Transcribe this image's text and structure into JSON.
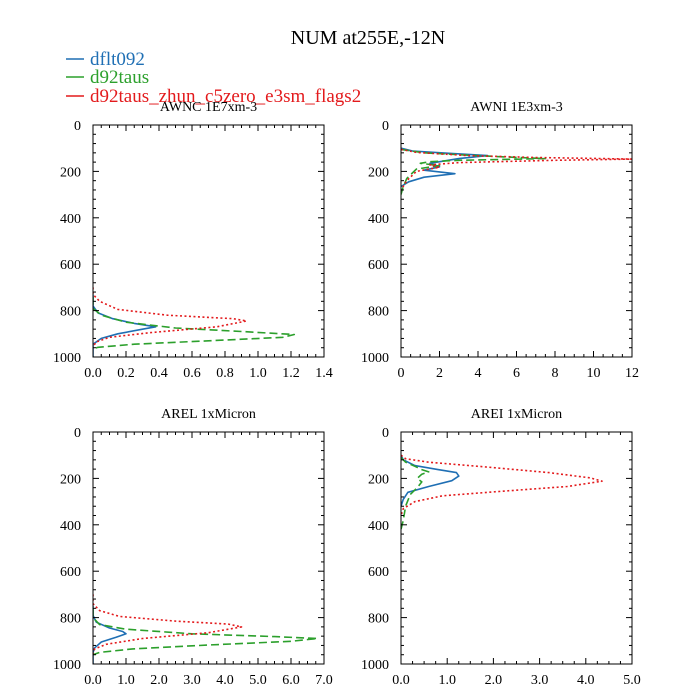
{
  "figure_title": "NUM at255E,-12N",
  "legend": [
    {
      "label": "dflt092",
      "color": "#1f6fb4",
      "dash": "solid"
    },
    {
      "label": "d92taus",
      "color": "#2ca02c",
      "dash": "long"
    },
    {
      "label": "d92taus_zhun_c5zero_e3sm_flags2",
      "color": "#e31a1c",
      "dash": "dot"
    }
  ],
  "chart_data": [
    {
      "type": "line",
      "title": "AWNC  1E7xm-3",
      "xlim": [
        0,
        1.4
      ],
      "ylim": [
        1000,
        0
      ],
      "xticks": [
        0,
        0.2,
        0.4,
        0.6,
        0.8,
        1,
        1.2,
        1.4
      ],
      "xtick_labels": [
        "0.0",
        "0.2",
        "0.4",
        "0.6",
        "0.8",
        "1.0",
        "1.2",
        "1.4"
      ],
      "yticks": [
        0,
        200,
        400,
        600,
        800,
        1000
      ],
      "ytick_labels": [
        "0",
        "200",
        "400",
        "600",
        "800",
        "1000"
      ],
      "series": [
        {
          "name": "dflt092",
          "points": [
            [
              0,
              730
            ],
            [
              0,
              780
            ],
            [
              0.03,
              810
            ],
            [
              0.12,
              835
            ],
            [
              0.25,
              855
            ],
            [
              0.38,
              870
            ],
            [
              0.3,
              880
            ],
            [
              0.15,
              900
            ],
            [
              0.05,
              920
            ],
            [
              0,
              945
            ],
            [
              0,
              1000
            ]
          ]
        },
        {
          "name": "d92taus",
          "points": [
            [
              0,
              740
            ],
            [
              0,
              790
            ],
            [
              0.05,
              820
            ],
            [
              0.2,
              850
            ],
            [
              0.5,
              875
            ],
            [
              0.9,
              890
            ],
            [
              1.22,
              903
            ],
            [
              1.15,
              915
            ],
            [
              0.7,
              930
            ],
            [
              0.25,
              945
            ],
            [
              0.03,
              958
            ],
            [
              0,
              965
            ]
          ]
        },
        {
          "name": "d92taus_zhun_c5zero_e3sm_flags2",
          "points": [
            [
              0,
              700
            ],
            [
              0,
              730
            ],
            [
              0.04,
              760
            ],
            [
              0.15,
              795
            ],
            [
              0.45,
              820
            ],
            [
              0.85,
              835
            ],
            [
              0.93,
              845
            ],
            [
              0.75,
              870
            ],
            [
              0.35,
              895
            ],
            [
              0.1,
              915
            ],
            [
              0.02,
              935
            ],
            [
              0,
              955
            ]
          ]
        }
      ]
    },
    {
      "type": "line",
      "title": "AWNI  1E3xm-3",
      "xlim": [
        0,
        12
      ],
      "ylim": [
        1000,
        0
      ],
      "xticks": [
        0,
        2,
        4,
        6,
        8,
        10,
        12
      ],
      "xtick_labels": [
        "0",
        "2",
        "4",
        "6",
        "8",
        "10",
        "12"
      ],
      "yticks": [
        0,
        200,
        400,
        600,
        800,
        1000
      ],
      "ytick_labels": [
        "0",
        "200",
        "400",
        "600",
        "800",
        "1000"
      ],
      "series": [
        {
          "name": "dflt092",
          "points": [
            [
              0,
              100
            ],
            [
              0.6,
              112
            ],
            [
              2.5,
              122
            ],
            [
              4.5,
              132
            ],
            [
              3,
              145
            ],
            [
              1.5,
              165
            ],
            [
              2,
              180
            ],
            [
              1.2,
              195
            ],
            [
              2.8,
              210
            ],
            [
              1.2,
              225
            ],
            [
              0.4,
              245
            ],
            [
              0,
              265
            ]
          ]
        },
        {
          "name": "d92taus",
          "points": [
            [
              0,
              105
            ],
            [
              1.2,
              120
            ],
            [
              3.5,
              130
            ],
            [
              5.5,
              138
            ],
            [
              7.5,
              145
            ],
            [
              3,
              152
            ],
            [
              1.5,
              158
            ],
            [
              1,
              165
            ],
            [
              2,
              175
            ],
            [
              0.8,
              190
            ],
            [
              0.3,
              230
            ],
            [
              0.1,
              270
            ],
            [
              0,
              300
            ]
          ]
        },
        {
          "name": "d92taus_zhun_c5zero_e3sm_flags2",
          "points": [
            [
              0,
              105
            ],
            [
              0.8,
              118
            ],
            [
              3.5,
              132
            ],
            [
              7,
              140
            ],
            [
              10,
              144
            ],
            [
              12,
              147
            ],
            [
              8,
              152
            ],
            [
              3,
              162
            ],
            [
              1.5,
              172
            ],
            [
              2,
              182
            ],
            [
              0.8,
              200
            ],
            [
              0.3,
              240
            ],
            [
              0,
              280
            ]
          ]
        }
      ]
    },
    {
      "type": "line",
      "title": "AREL  1xMicron",
      "xlim": [
        0,
        7
      ],
      "ylim": [
        1000,
        0
      ],
      "xticks": [
        0,
        1,
        2,
        3,
        4,
        5,
        6,
        7
      ],
      "xtick_labels": [
        "0.0",
        "1.0",
        "2.0",
        "3.0",
        "4.0",
        "5.0",
        "6.0",
        "7.0"
      ],
      "yticks": [
        0,
        200,
        400,
        600,
        800,
        1000
      ],
      "ytick_labels": [
        "0",
        "200",
        "400",
        "600",
        "800",
        "1000"
      ],
      "series": [
        {
          "name": "dflt092",
          "points": [
            [
              0,
              750
            ],
            [
              0,
              790
            ],
            [
              0.1,
              820
            ],
            [
              0.5,
              845
            ],
            [
              0.9,
              860
            ],
            [
              1,
              870
            ],
            [
              0.7,
              885
            ],
            [
              0.25,
              905
            ],
            [
              0.05,
              930
            ],
            [
              0,
              950
            ],
            [
              0,
              1000
            ]
          ]
        },
        {
          "name": "d92taus",
          "points": [
            [
              0,
              760
            ],
            [
              0,
              800
            ],
            [
              0.2,
              830
            ],
            [
              1,
              850
            ],
            [
              3,
              870
            ],
            [
              5.5,
              882
            ],
            [
              6.8,
              890
            ],
            [
              6,
              902
            ],
            [
              3.5,
              918
            ],
            [
              1.2,
              935
            ],
            [
              0.2,
              950
            ],
            [
              0,
              960
            ]
          ]
        },
        {
          "name": "d92taus_zhun_c5zero_e3sm_flags2",
          "points": [
            [
              0,
              700
            ],
            [
              0,
              740
            ],
            [
              0.2,
              770
            ],
            [
              0.8,
              795
            ],
            [
              2.5,
              815
            ],
            [
              4.1,
              828
            ],
            [
              4.5,
              840
            ],
            [
              3.5,
              865
            ],
            [
              1.5,
              890
            ],
            [
              0.4,
              915
            ],
            [
              0.05,
              935
            ],
            [
              0,
              955
            ]
          ]
        }
      ]
    },
    {
      "type": "line",
      "title": "AREI  1xMicron",
      "xlim": [
        0,
        5
      ],
      "ylim": [
        1000,
        0
      ],
      "xticks": [
        0,
        1,
        2,
        3,
        4,
        5
      ],
      "xtick_labels": [
        "0.0",
        "1.0",
        "2.0",
        "3.0",
        "4.0",
        "5.0"
      ],
      "yticks": [
        0,
        200,
        400,
        600,
        800,
        1000
      ],
      "ytick_labels": [
        "0",
        "200",
        "400",
        "600",
        "800",
        "1000"
      ],
      "series": [
        {
          "name": "dflt092",
          "points": [
            [
              0,
              100
            ],
            [
              0.05,
              120
            ],
            [
              0.3,
              145
            ],
            [
              0.8,
              162
            ],
            [
              1.2,
              175
            ],
            [
              1.25,
              190
            ],
            [
              1.1,
              210
            ],
            [
              0.6,
              235
            ],
            [
              0.15,
              260
            ],
            [
              0.05,
              290
            ],
            [
              0,
              320
            ]
          ]
        },
        {
          "name": "d92taus",
          "points": [
            [
              0,
              110
            ],
            [
              0.1,
              130
            ],
            [
              0.3,
              148
            ],
            [
              0.45,
              162
            ],
            [
              0.6,
              172
            ],
            [
              0.45,
              182
            ],
            [
              0.35,
              200
            ],
            [
              0.45,
              215
            ],
            [
              0.35,
              240
            ],
            [
              0.2,
              270
            ],
            [
              0.1,
              320
            ],
            [
              0.05,
              380
            ],
            [
              0,
              420
            ]
          ]
        },
        {
          "name": "d92taus_zhun_c5zero_e3sm_flags2",
          "points": [
            [
              0,
              100
            ],
            [
              0.1,
              115
            ],
            [
              0.6,
              130
            ],
            [
              1.8,
              150
            ],
            [
              3.2,
              175
            ],
            [
              4.1,
              198
            ],
            [
              4.35,
              212
            ],
            [
              3.6,
              235
            ],
            [
              2.2,
              255
            ],
            [
              0.9,
              275
            ],
            [
              0.3,
              300
            ],
            [
              0.05,
              330
            ],
            [
              0,
              360
            ]
          ]
        }
      ]
    }
  ]
}
